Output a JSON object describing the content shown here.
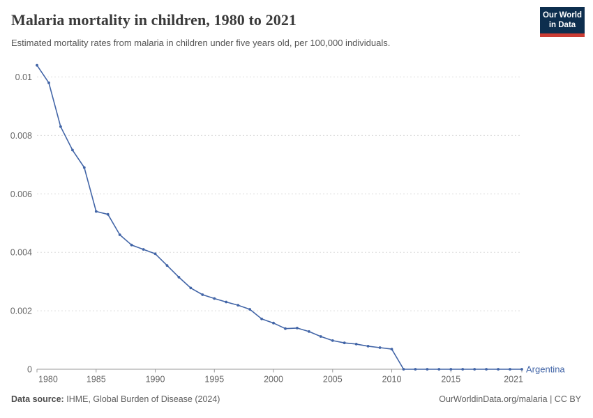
{
  "header": {
    "title": "Malaria mortality in children, 1980 to 2021",
    "subtitle": "Estimated mortality rates from malaria in children under five years old, per 100,000 individuals.",
    "logo": {
      "line1": "Our World",
      "line2": "in Data",
      "bg_color": "#0d2e4e",
      "stripe_color": "#cb3c33"
    }
  },
  "footer": {
    "source_label": "Data source:",
    "source_text": "IHME, Global Burden of Disease (2024)",
    "credit": "OurWorldinData.org/malaria | CC BY"
  },
  "chart_data": {
    "type": "line",
    "title": "Malaria mortality in children, 1980 to 2021",
    "subtitle": "Estimated mortality rates from malaria in children under five years old, per 100,000 individuals.",
    "xlabel": "",
    "ylabel": "",
    "grid": "horizontal-dashed",
    "legend": "end-of-line-label",
    "ylim": [
      0,
      0.0105
    ],
    "x": [
      1980,
      1981,
      1982,
      1983,
      1984,
      1985,
      1986,
      1987,
      1988,
      1989,
      1990,
      1991,
      1992,
      1993,
      1994,
      1995,
      1996,
      1997,
      1998,
      1999,
      2000,
      2001,
      2002,
      2003,
      2004,
      2005,
      2006,
      2007,
      2008,
      2009,
      2010,
      2011,
      2012,
      2013,
      2014,
      2015,
      2016,
      2017,
      2018,
      2019,
      2020,
      2021
    ],
    "series": [
      {
        "name": "Argentina",
        "color": "#4265a7",
        "values": [
          0.0104,
          0.0098,
          0.0083,
          0.0075,
          0.0069,
          0.0054,
          0.0053,
          0.0046,
          0.00425,
          0.0041,
          0.00395,
          0.00355,
          0.00315,
          0.00278,
          0.00255,
          0.00242,
          0.0023,
          0.00219,
          0.00205,
          0.00172,
          0.00158,
          0.00139,
          0.00141,
          0.00129,
          0.00112,
          0.00098,
          0.0009,
          0.00086,
          0.00079,
          0.00074,
          0.00069,
          0,
          0,
          0,
          0,
          0,
          0,
          0,
          0,
          0,
          0,
          0
        ]
      }
    ],
    "yticks": [
      {
        "v": 0,
        "label": "0"
      },
      {
        "v": 0.002,
        "label": "0.002"
      },
      {
        "v": 0.004,
        "label": "0.004"
      },
      {
        "v": 0.006,
        "label": "0.006"
      },
      {
        "v": 0.008,
        "label": "0.008"
      },
      {
        "v": 0.01,
        "label": "0.01"
      }
    ],
    "xticks": [
      1980,
      1985,
      1990,
      1995,
      2000,
      2005,
      2010,
      2015,
      2021
    ]
  }
}
